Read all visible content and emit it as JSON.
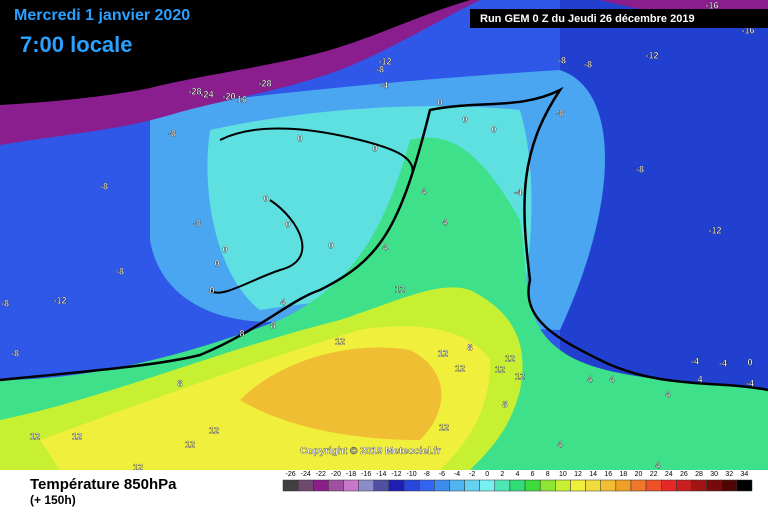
{
  "header": {
    "date": "Mercredi 1 janvier 2020",
    "time": "7:00 locale",
    "run": "Run GEM 0 Z du Jeudi 26 décembre 2019"
  },
  "copyright": "Copyright © 2019 Meteociel.fr",
  "footer": {
    "title": "Température 850hPa",
    "lead": "(+ 150h)"
  },
  "scale": {
    "values": [
      -26,
      -24,
      -22,
      -20,
      -18,
      -16,
      -14,
      -12,
      -10,
      -8,
      -6,
      -4,
      -2,
      0,
      2,
      4,
      6,
      8,
      10,
      12,
      14,
      16,
      18,
      20,
      22,
      24,
      26,
      28,
      30,
      32,
      34
    ],
    "colors": [
      "#404040",
      "#6e4a6e",
      "#8c1e8c",
      "#a050a0",
      "#c878c8",
      "#8c8cc8",
      "#5050a0",
      "#1e1eb4",
      "#2846dc",
      "#3264f0",
      "#3c8cf0",
      "#50b4f0",
      "#64d2f0",
      "#78f0f0",
      "#50e6b4",
      "#32dc78",
      "#3cdc3c",
      "#8ce632",
      "#c8f032",
      "#f0f03c",
      "#f0dc3c",
      "#f0be32",
      "#f0a028",
      "#f07828",
      "#f05028",
      "#e62828",
      "#c81e1e",
      "#a01414",
      "#780a0a",
      "#500505",
      "#000000"
    ]
  },
  "map": {
    "labels": [
      -28,
      -24,
      -20,
      16,
      -28,
      -8,
      -8,
      -8,
      -8,
      -12,
      -8,
      -8,
      0,
      0,
      0,
      0,
      0,
      0,
      0,
      0,
      4,
      4,
      8,
      8,
      8,
      12,
      12,
      12,
      12,
      12,
      12,
      12,
      8,
      8,
      12,
      12,
      12,
      12,
      12,
      12,
      -8,
      -8,
      -12,
      -12,
      -8,
      -4,
      0,
      0,
      0,
      -8,
      -8,
      -12,
      -4,
      -16,
      -16,
      4,
      4,
      4,
      -4,
      -4,
      0,
      -4,
      4,
      4,
      4,
      4,
      4
    ]
  }
}
